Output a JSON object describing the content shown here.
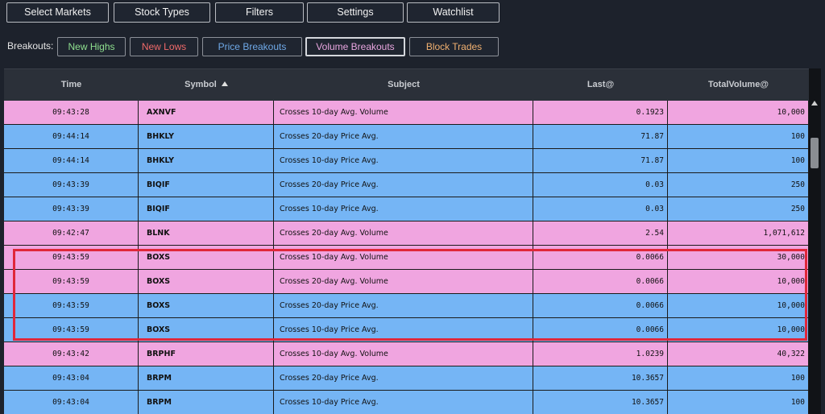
{
  "toolbar": {
    "buttons": [
      {
        "label": "Select Markets"
      },
      {
        "label": "Stock Types"
      },
      {
        "label": "Filters"
      },
      {
        "label": "Settings"
      },
      {
        "label": "Watchlist"
      }
    ]
  },
  "breakouts": {
    "label": "Breakouts:",
    "buttons": [
      {
        "label": "New Highs",
        "color": "#8fe08f"
      },
      {
        "label": "New Lows",
        "color": "#f06a6a"
      },
      {
        "label": "Price Breakouts",
        "color": "#6fa9e8"
      },
      {
        "label": "Volume Breakouts",
        "color": "#e9a6e0",
        "selected": true
      },
      {
        "label": "Block Trades",
        "color": "#f0b070"
      }
    ]
  },
  "table": {
    "columns": [
      "Time",
      "Symbol",
      "Subject",
      "Last@",
      "TotalVolume@"
    ],
    "sort_column": "Symbol",
    "sort_direction": "ascending",
    "colors": {
      "volume_row": "#f0a5e0",
      "price_row": "#75b5f5"
    },
    "rows": [
      {
        "time": "09:43:28",
        "symbol": "AXNVF",
        "subject": "Crosses 10-day Avg. Volume",
        "last": "0.1923",
        "volume": "10,000",
        "kind": "volume"
      },
      {
        "time": "09:44:14",
        "symbol": "BHKLY",
        "subject": "Crosses 20-day Price Avg.",
        "last": "71.87",
        "volume": "100",
        "kind": "price"
      },
      {
        "time": "09:44:14",
        "symbol": "BHKLY",
        "subject": "Crosses 10-day Price Avg.",
        "last": "71.87",
        "volume": "100",
        "kind": "price"
      },
      {
        "time": "09:43:39",
        "symbol": "BIQIF",
        "subject": "Crosses 20-day Price Avg.",
        "last": "0.03",
        "volume": "250",
        "kind": "price"
      },
      {
        "time": "09:43:39",
        "symbol": "BIQIF",
        "subject": "Crosses 10-day Price Avg.",
        "last": "0.03",
        "volume": "250",
        "kind": "price"
      },
      {
        "time": "09:42:47",
        "symbol": "BLNK",
        "subject": "Crosses 20-day Avg. Volume",
        "last": "2.54",
        "volume": "1,071,612",
        "kind": "volume"
      },
      {
        "time": "09:43:59",
        "symbol": "BOXS",
        "subject": "Crosses 10-day Avg. Volume",
        "last": "0.0066",
        "volume": "30,000",
        "kind": "volume"
      },
      {
        "time": "09:43:59",
        "symbol": "BOXS",
        "subject": "Crosses 20-day Avg. Volume",
        "last": "0.0066",
        "volume": "10,000",
        "kind": "volume"
      },
      {
        "time": "09:43:59",
        "symbol": "BOXS",
        "subject": "Crosses 20-day Price Avg.",
        "last": "0.0066",
        "volume": "10,000",
        "kind": "price"
      },
      {
        "time": "09:43:59",
        "symbol": "BOXS",
        "subject": "Crosses 10-day Price Avg.",
        "last": "0.0066",
        "volume": "10,000",
        "kind": "price"
      },
      {
        "time": "09:43:42",
        "symbol": "BRPHF",
        "subject": "Crosses 10-day Avg. Volume",
        "last": "1.0239",
        "volume": "40,322",
        "kind": "volume"
      },
      {
        "time": "09:43:04",
        "symbol": "BRPM",
        "subject": "Crosses 20-day Price Avg.",
        "last": "10.3657",
        "volume": "100",
        "kind": "price"
      },
      {
        "time": "09:43:04",
        "symbol": "BRPM",
        "subject": "Crosses 10-day Price Avg.",
        "last": "10.3657",
        "volume": "100",
        "kind": "price"
      }
    ]
  },
  "annotation": {
    "color": "#e0273a"
  }
}
